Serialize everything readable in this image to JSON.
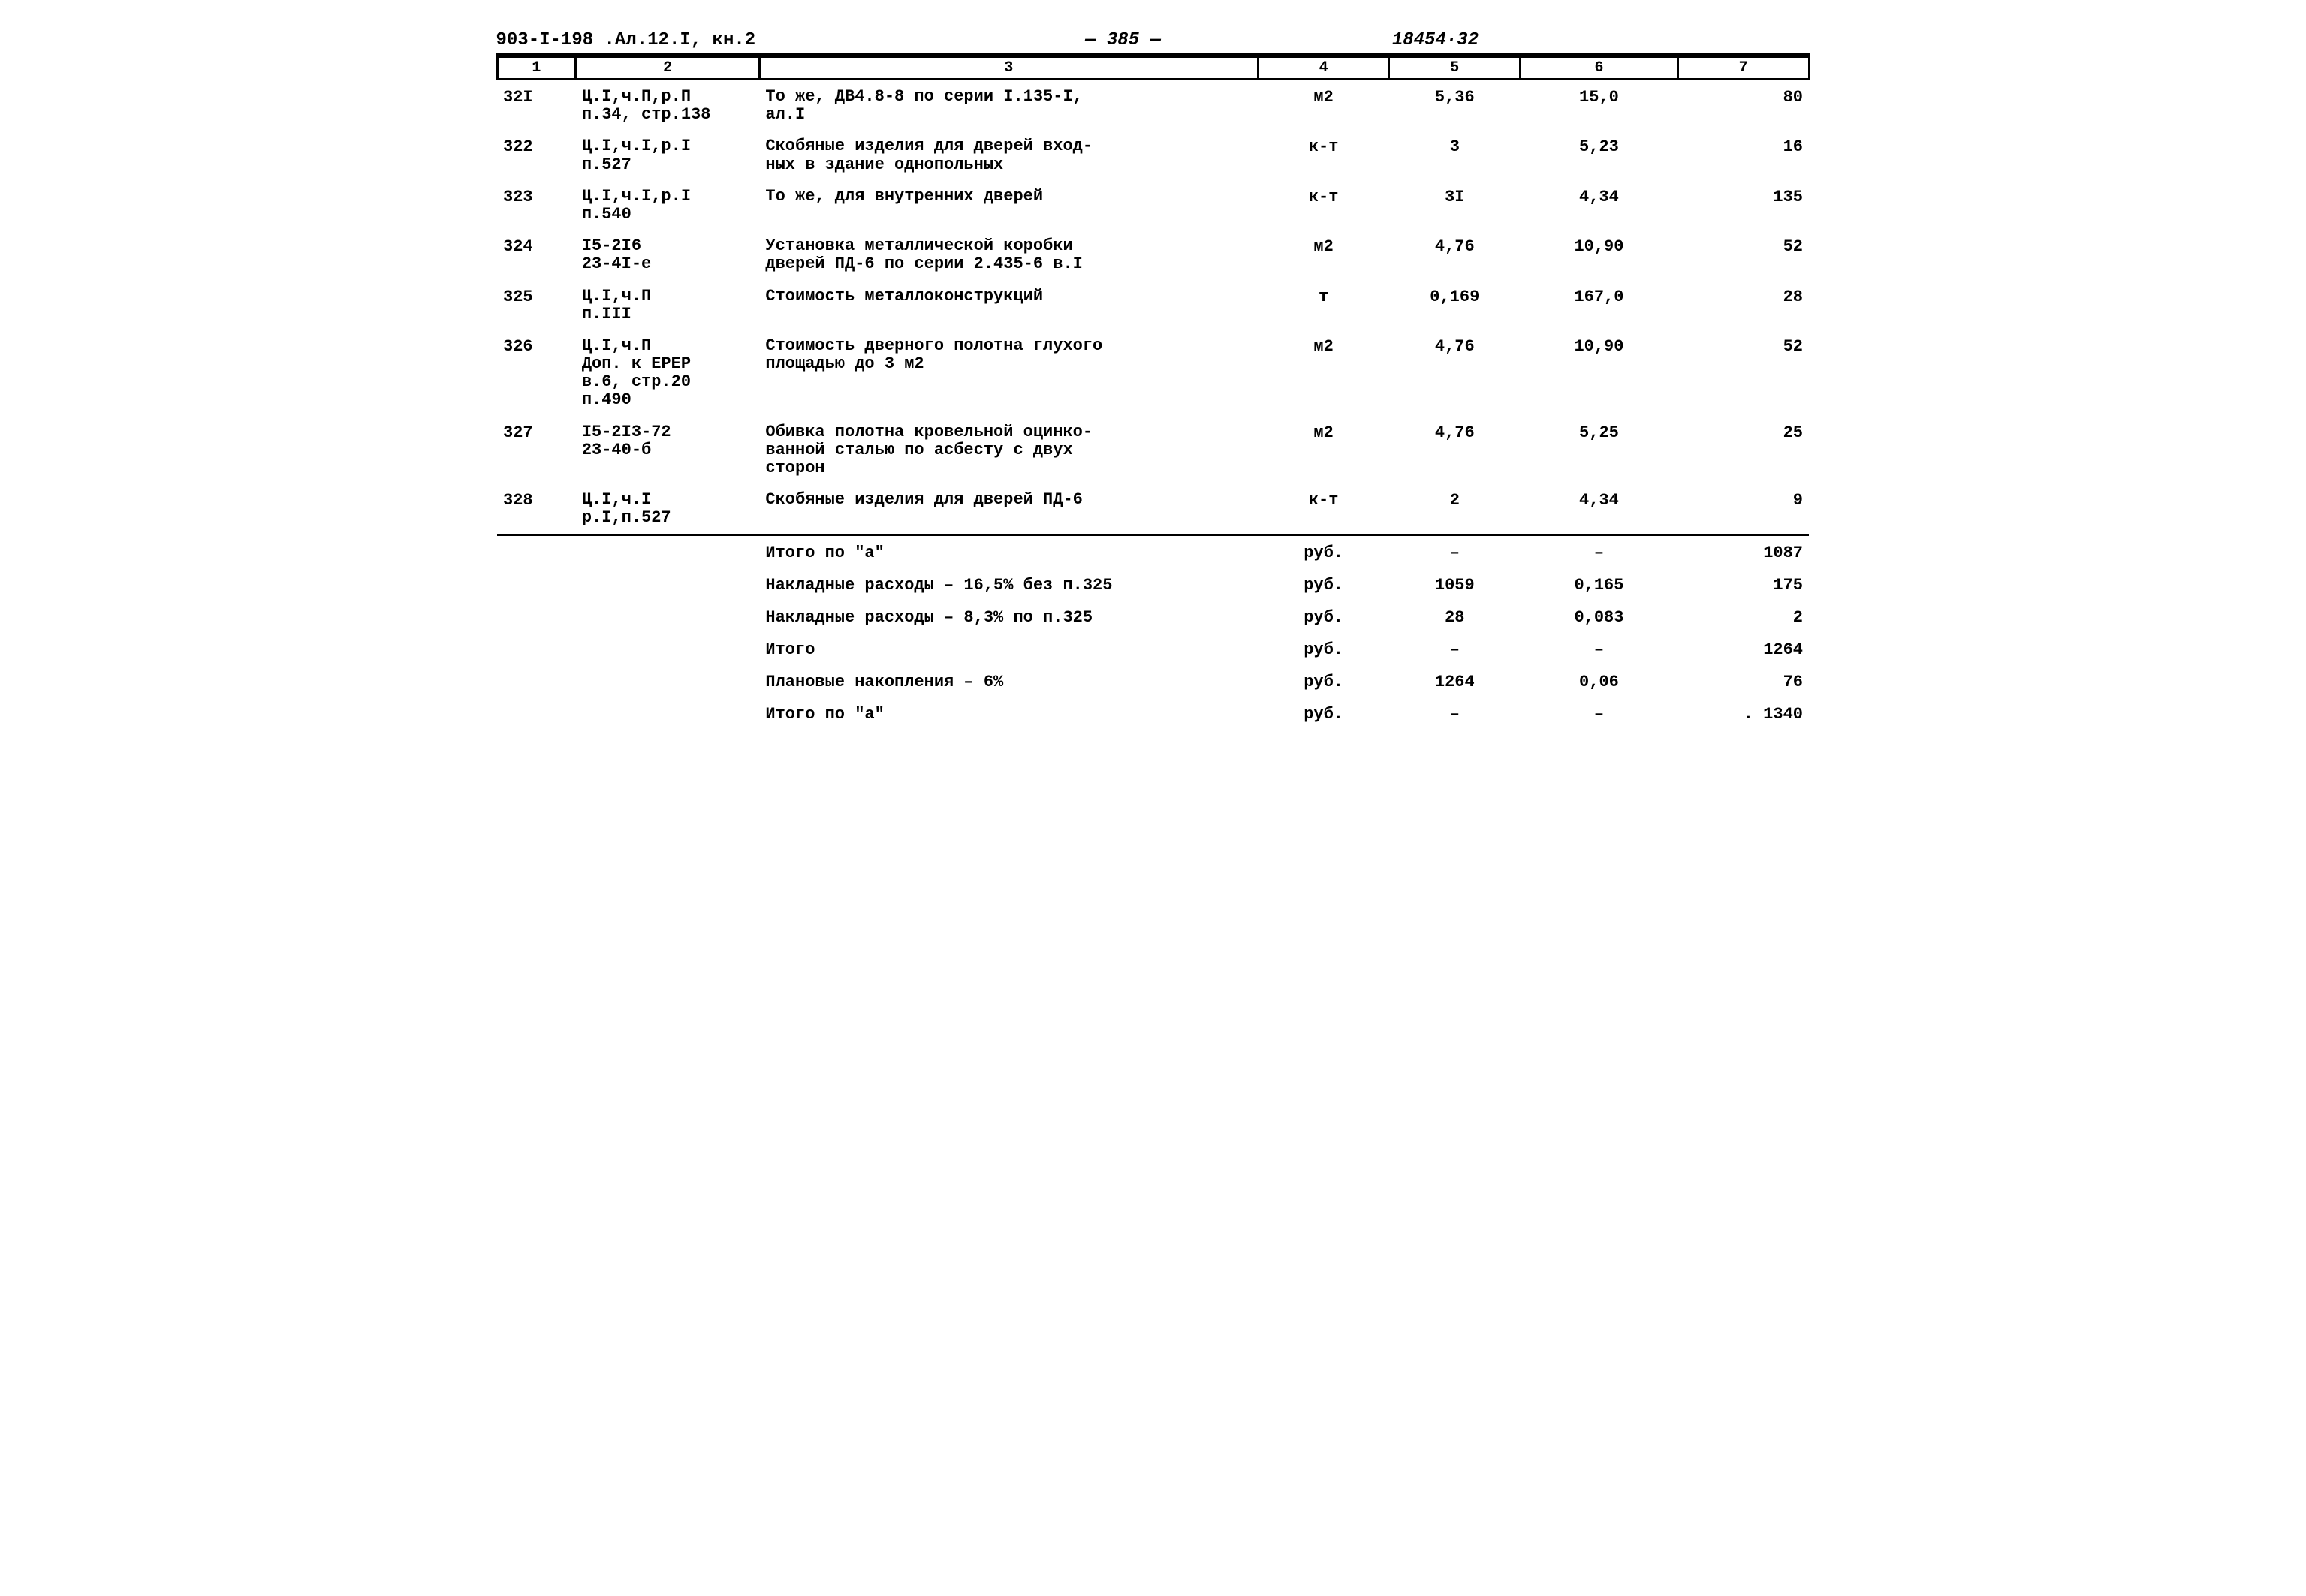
{
  "header": {
    "left": "903-I-198 .Ал.12.I, кн.2",
    "mid": "— 385 —",
    "right": "18454·32"
  },
  "columns": [
    "1",
    "2",
    "3",
    "4",
    "5",
    "6",
    "7"
  ],
  "rows": [
    {
      "c1": "32I",
      "c2a": "Ц.I,ч.П,р.П",
      "c2b": "п.34, стр.138",
      "c3a": "То же, ДВ4.8-8 по серии I.135-I,",
      "c3b": "ал.I",
      "c4": "м2",
      "c5": "5,36",
      "c6": "15,0",
      "c7": "80"
    },
    {
      "c1": "322",
      "c2a": "Ц.I,ч.I,р.I",
      "c2b": "п.527",
      "c3a": "Скобяные изделия для дверей вход-",
      "c3b": "ных в здание однопольных",
      "c4": "к-т",
      "c5": "3",
      "c6": "5,23",
      "c7": "16"
    },
    {
      "c1": "323",
      "c2a": "Ц.I,ч.I,р.I",
      "c2b": "п.540",
      "c3a": "То же, для внутренних дверей",
      "c3b": "",
      "c4": "к-т",
      "c5": "3I",
      "c6": "4,34",
      "c7": "135"
    },
    {
      "c1": "324",
      "c2a": "I5-2I6",
      "c2b": "23-4I-е",
      "c3a": "Установка металлической коробки",
      "c3b": "дверей ПД-6 по серии 2.435-6 в.I",
      "c4": "м2",
      "c5": "4,76",
      "c6": "10,90",
      "c7": "52"
    },
    {
      "c1": "325",
      "c2a": "Ц.I,ч.П",
      "c2b": "п.III",
      "c3a": "Стоимость металлоконструкций",
      "c3b": "",
      "c4": "т",
      "c5": "0,169",
      "c6": "167,0",
      "c7": "28"
    },
    {
      "c1": "326",
      "c2a": "Ц.I,ч.П",
      "c2b": "Доп. к ЕРЕР",
      "c2c": "в.6, стр.20",
      "c2d": "п.490",
      "c3a": "Стоимость дверного полотна глухого",
      "c3b": "площадью до 3 м2",
      "c4": "м2",
      "c5": "4,76",
      "c6": "10,90",
      "c7": "52"
    },
    {
      "c1": "327",
      "c2a": "I5-2I3-72",
      "c2b": "23-40-б",
      "c3a": "Обивка полотна кровельной оцинко-",
      "c3b": "ванной сталью по асбесту с двух",
      "c3c": "сторон",
      "c4": "м2",
      "c5": "4,76",
      "c6": "5,25",
      "c7": "25"
    },
    {
      "c1": "328",
      "c2a": "Ц.I,ч.I",
      "c2b": "р.I,п.527",
      "c3a": "Скобяные изделия для дверей ПД-6",
      "c3b": "",
      "c4": "к-т",
      "c5": "2",
      "c6": "4,34",
      "c7": "9"
    }
  ],
  "summary": [
    {
      "c3": "Итого по \"а\"",
      "c4": "руб.",
      "c5": "–",
      "c6": "–",
      "c7": "1087"
    },
    {
      "c3": "Накладные расходы – 16,5% без п.325",
      "c4": "руб.",
      "c5": "1059",
      "c6": "0,165",
      "c7": "175"
    },
    {
      "c3": "Накладные расходы – 8,3% по п.325",
      "c4": "руб.",
      "c5": "28",
      "c6": "0,083",
      "c7": "2"
    },
    {
      "c3": "Итого",
      "c4": "руб.",
      "c5": "–",
      "c6": "–",
      "c7": "1264"
    },
    {
      "c3": "Плановые накопления – 6%",
      "c4": "руб.",
      "c5": "1264",
      "c6": "0,06",
      "c7": "76"
    },
    {
      "c3": "Итого по \"а\"",
      "c4": "руб.",
      "c5": "–",
      "c6": "–",
      "c7": ". 1340"
    }
  ]
}
